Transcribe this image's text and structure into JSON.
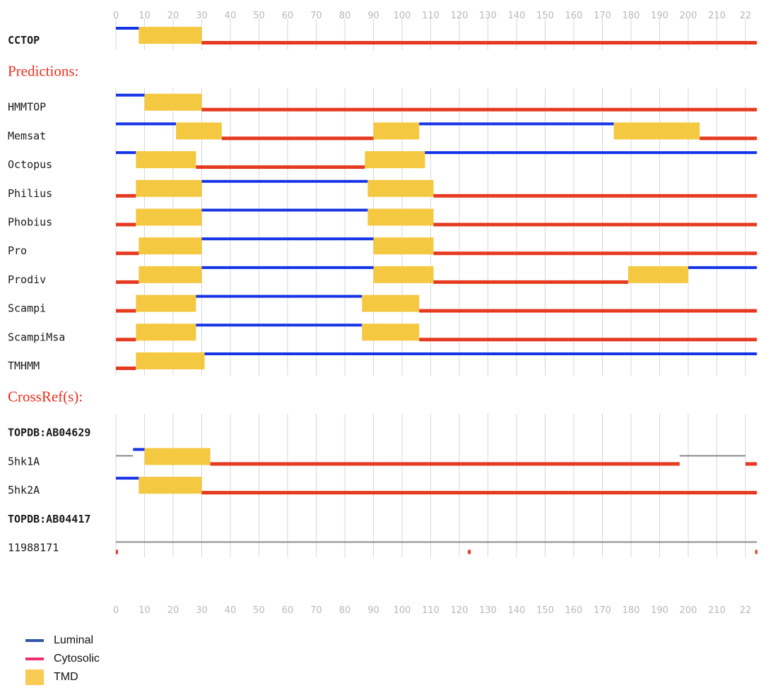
{
  "colors": {
    "luminal": "#1634e6",
    "cytosolic": "#e63a20",
    "tmd": "#f5c842",
    "other": "#8a8a8a",
    "grid": "#d7d7d7",
    "section": "#e8301f",
    "legend_luminal": "#3355a8",
    "legend_cytosolic": "#ee2d6e",
    "legend_tmd": "#f9cb54"
  },
  "chart_data": {
    "type": "topology-track",
    "x_ticks": [
      "0",
      "10",
      "20",
      "30",
      "40",
      "50",
      "60",
      "70",
      "80",
      "90",
      "100",
      "110",
      "120",
      "130",
      "140",
      "150",
      "160",
      "170",
      "180",
      "190",
      "200",
      "210",
      "22"
    ],
    "x_range": [
      0,
      224
    ],
    "groups": [
      {
        "title": "",
        "rows": [
          {
            "label": "CCTOP",
            "bold": true,
            "segments": [
              {
                "type": "luminal",
                "start": 0,
                "end": 8
              },
              {
                "type": "tmd",
                "start": 8,
                "end": 30
              },
              {
                "type": "cytosolic",
                "start": 30,
                "end": 224
              }
            ]
          }
        ]
      },
      {
        "title": "Predictions:",
        "rows": [
          {
            "label": "HMMTOP",
            "segments": [
              {
                "type": "luminal",
                "start": 0,
                "end": 10
              },
              {
                "type": "tmd",
                "start": 10,
                "end": 30
              },
              {
                "type": "cytosolic",
                "start": 30,
                "end": 224
              }
            ]
          },
          {
            "label": "Memsat",
            "segments": [
              {
                "type": "luminal",
                "start": 0,
                "end": 21
              },
              {
                "type": "tmd",
                "start": 21,
                "end": 37
              },
              {
                "type": "cytosolic",
                "start": 37,
                "end": 90
              },
              {
                "type": "tmd",
                "start": 90,
                "end": 106
              },
              {
                "type": "luminal",
                "start": 106,
                "end": 174
              },
              {
                "type": "tmd",
                "start": 174,
                "end": 204
              },
              {
                "type": "cytosolic",
                "start": 204,
                "end": 224
              }
            ]
          },
          {
            "label": "Octopus",
            "segments": [
              {
                "type": "luminal",
                "start": 0,
                "end": 7
              },
              {
                "type": "tmd",
                "start": 7,
                "end": 28
              },
              {
                "type": "cytosolic",
                "start": 28,
                "end": 87
              },
              {
                "type": "tmd",
                "start": 87,
                "end": 108
              },
              {
                "type": "luminal",
                "start": 108,
                "end": 224
              }
            ]
          },
          {
            "label": "Philius",
            "segments": [
              {
                "type": "cytosolic",
                "start": 0,
                "end": 7
              },
              {
                "type": "tmd",
                "start": 7,
                "end": 30
              },
              {
                "type": "luminal",
                "start": 30,
                "end": 88
              },
              {
                "type": "tmd",
                "start": 88,
                "end": 111
              },
              {
                "type": "cytosolic",
                "start": 111,
                "end": 224
              }
            ]
          },
          {
            "label": "Phobius",
            "segments": [
              {
                "type": "cytosolic",
                "start": 0,
                "end": 7
              },
              {
                "type": "tmd",
                "start": 7,
                "end": 30
              },
              {
                "type": "luminal",
                "start": 30,
                "end": 88
              },
              {
                "type": "tmd",
                "start": 88,
                "end": 111
              },
              {
                "type": "cytosolic",
                "start": 111,
                "end": 224
              }
            ]
          },
          {
            "label": "Pro",
            "segments": [
              {
                "type": "cytosolic",
                "start": 0,
                "end": 8
              },
              {
                "type": "tmd",
                "start": 8,
                "end": 30
              },
              {
                "type": "luminal",
                "start": 30,
                "end": 90
              },
              {
                "type": "tmd",
                "start": 90,
                "end": 111
              },
              {
                "type": "cytosolic",
                "start": 111,
                "end": 224
              }
            ]
          },
          {
            "label": "Prodiv",
            "segments": [
              {
                "type": "cytosolic",
                "start": 0,
                "end": 8
              },
              {
                "type": "tmd",
                "start": 8,
                "end": 30
              },
              {
                "type": "luminal",
                "start": 30,
                "end": 90
              },
              {
                "type": "tmd",
                "start": 90,
                "end": 111
              },
              {
                "type": "cytosolic",
                "start": 111,
                "end": 179
              },
              {
                "type": "tmd",
                "start": 179,
                "end": 200
              },
              {
                "type": "luminal",
                "start": 200,
                "end": 224
              }
            ]
          },
          {
            "label": "Scampi",
            "segments": [
              {
                "type": "cytosolic",
                "start": 0,
                "end": 7
              },
              {
                "type": "tmd",
                "start": 7,
                "end": 28
              },
              {
                "type": "luminal",
                "start": 28,
                "end": 86
              },
              {
                "type": "tmd",
                "start": 86,
                "end": 106
              },
              {
                "type": "cytosolic",
                "start": 106,
                "end": 224
              }
            ]
          },
          {
            "label": "ScampiMsa",
            "segments": [
              {
                "type": "cytosolic",
                "start": 0,
                "end": 7
              },
              {
                "type": "tmd",
                "start": 7,
                "end": 28
              },
              {
                "type": "luminal",
                "start": 28,
                "end": 86
              },
              {
                "type": "tmd",
                "start": 86,
                "end": 106
              },
              {
                "type": "cytosolic",
                "start": 106,
                "end": 224
              }
            ]
          },
          {
            "label": "TMHMM",
            "segments": [
              {
                "type": "cytosolic",
                "start": 0,
                "end": 7
              },
              {
                "type": "tmd",
                "start": 7,
                "end": 31
              },
              {
                "type": "luminal",
                "start": 31,
                "end": 224
              }
            ]
          }
        ]
      },
      {
        "title": "CrossRef(s):",
        "rows": [
          {
            "label": "TOPDB:AB04629",
            "bold": true,
            "segments": []
          },
          {
            "label": "5hk1A",
            "segments": [
              {
                "type": "other",
                "start": 0,
                "end": 6
              },
              {
                "type": "luminal",
                "start": 6,
                "end": 10
              },
              {
                "type": "tmd",
                "start": 10,
                "end": 33
              },
              {
                "type": "cytosolic",
                "start": 33,
                "end": 197
              },
              {
                "type": "other",
                "start": 197,
                "end": 220
              },
              {
                "type": "cytosolic",
                "start": 220,
                "end": 224
              }
            ]
          },
          {
            "label": "5hk2A",
            "segments": [
              {
                "type": "luminal",
                "start": 0,
                "end": 8
              },
              {
                "type": "tmd",
                "start": 8,
                "end": 30
              },
              {
                "type": "cytosolic",
                "start": 30,
                "end": 224
              }
            ]
          },
          {
            "label": "TOPDB:AB04417",
            "bold": true,
            "segments": []
          },
          {
            "label": "11988171",
            "segments": [
              {
                "type": "other",
                "start": 0,
                "end": 224
              },
              {
                "type": "cytosolic_mark",
                "start": 0,
                "end": 0.6
              },
              {
                "type": "cytosolic_mark",
                "start": 123,
                "end": 124
              },
              {
                "type": "cytosolic_mark",
                "start": 223.4,
                "end": 224
              }
            ]
          }
        ]
      }
    ],
    "legend": [
      {
        "name": "Luminal",
        "type": "luminal"
      },
      {
        "name": "Cytosolic",
        "type": "cytosolic"
      },
      {
        "name": "TMD",
        "type": "tmd"
      }
    ]
  }
}
